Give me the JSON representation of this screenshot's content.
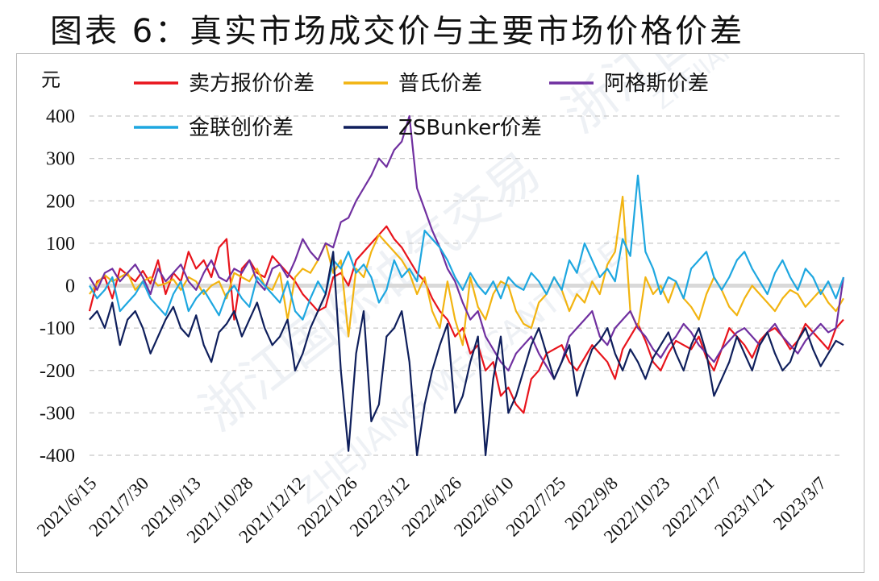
{
  "figure_title": "图表 6：真实市场成交价与主要市场价格价差",
  "watermark_text": [
    "浙江国际油气交易",
    "ZHEJIANG MERCANTILE EX",
    "浙江国际",
    "ZHEJIANG"
  ],
  "chart_data": {
    "type": "line",
    "ylabel": "元",
    "ylim": [
      -400,
      400
    ],
    "yticks": [
      "400",
      "300",
      "200",
      "100",
      "0",
      "-100",
      "-200",
      "-300",
      "-400"
    ],
    "xtick_labels": [
      "2021/6/15",
      "2021/7/30",
      "2021/9/13",
      "2021/10/28",
      "2021/12/12",
      "2022/1/26",
      "2022/3/12",
      "2022/4/26",
      "2022/6/10",
      "2022/7/25",
      "2022/9/8",
      "2022/10/23",
      "2022/12/7",
      "2023/1/21",
      "2023/3/7"
    ],
    "grid": "horizontal dashed",
    "legend_placement": "top, inside plot",
    "series": [
      {
        "name": "卖方报价价差",
        "color": "#e8141c",
        "values": [
          -60,
          10,
          20,
          -30,
          40,
          25,
          10,
          35,
          5,
          60,
          -20,
          30,
          10,
          80,
          40,
          60,
          20,
          90,
          110,
          -80,
          40,
          60,
          30,
          20,
          70,
          50,
          30,
          10,
          -20,
          -40,
          -60,
          -50,
          20,
          30,
          0,
          60,
          80,
          100,
          120,
          140,
          110,
          90,
          60,
          30,
          10,
          -30,
          -60,
          -80,
          -120,
          -100,
          -160,
          -140,
          -200,
          -180,
          -260,
          -240,
          -280,
          -300,
          -220,
          -200,
          -160,
          -150,
          -140,
          -180,
          -200,
          -170,
          -140,
          -160,
          -180,
          -220,
          -150,
          -120,
          -90,
          -130,
          -180,
          -200,
          -160,
          -130,
          -140,
          -150,
          -120,
          -170,
          -200,
          -150,
          -100,
          -120,
          -140,
          -170,
          -130,
          -110,
          -100,
          -120,
          -150,
          -130,
          -90,
          -110,
          -130,
          -150,
          -100,
          -80
        ]
      },
      {
        "name": "普氏价差",
        "color": "#f2b411",
        "values": [
          -20,
          5,
          25,
          10,
          20,
          30,
          -10,
          10,
          20,
          0,
          5,
          15,
          -10,
          20,
          10,
          -20,
          0,
          10,
          -30,
          30,
          20,
          10,
          40,
          0,
          -10,
          30,
          -80,
          20,
          40,
          30,
          60,
          100,
          30,
          60,
          -120,
          40,
          20,
          80,
          120,
          100,
          80,
          60,
          30,
          -20,
          20,
          -60,
          -100,
          10,
          -80,
          -140,
          20,
          -50,
          -80,
          -20,
          10,
          0,
          -60,
          -90,
          -100,
          -40,
          -20,
          20,
          -10,
          -60,
          -20,
          -40,
          10,
          -20,
          50,
          80,
          210,
          -60,
          -100,
          20,
          -20,
          0,
          -40,
          10,
          -30,
          -50,
          -80,
          -20,
          20,
          -10,
          -50,
          -70,
          -30,
          0,
          -20,
          -40,
          -60,
          -30,
          -10,
          -20,
          -50,
          -30,
          -10,
          -40,
          -60,
          -30
        ]
      },
      {
        "name": "阿格斯价差",
        "color": "#7030a0",
        "values": [
          20,
          -10,
          30,
          40,
          10,
          30,
          50,
          20,
          -20,
          40,
          10,
          30,
          50,
          10,
          -10,
          30,
          60,
          20,
          10,
          40,
          30,
          60,
          10,
          -10,
          40,
          50,
          20,
          60,
          110,
          80,
          60,
          100,
          90,
          150,
          160,
          200,
          230,
          260,
          300,
          280,
          320,
          340,
          400,
          230,
          180,
          130,
          90,
          40,
          10,
          -40,
          -80,
          -60,
          -120,
          -150,
          -180,
          -200,
          -160,
          -140,
          -120,
          -160,
          -190,
          -220,
          -180,
          -120,
          -100,
          -80,
          -60,
          -120,
          -140,
          -100,
          -80,
          -60,
          -100,
          -120,
          -150,
          -170,
          -140,
          -120,
          -90,
          -110,
          -140,
          -160,
          -180,
          -150,
          -130,
          -110,
          -100,
          -120,
          -140,
          -110,
          -90,
          -120,
          -140,
          -160,
          -130,
          -110,
          -90,
          -110,
          -100,
          20
        ]
      },
      {
        "name": "金联创价差",
        "color": "#1ea7e0",
        "values": [
          0,
          -30,
          -10,
          20,
          -60,
          -40,
          -20,
          10,
          -30,
          -50,
          -70,
          -20,
          10,
          -60,
          -30,
          -10,
          -40,
          -70,
          -20,
          0,
          -30,
          -50,
          20,
          0,
          -20,
          -40,
          10,
          -60,
          -80,
          -30,
          10,
          -20,
          60,
          40,
          80,
          30,
          50,
          20,
          -40,
          -10,
          60,
          20,
          40,
          10,
          130,
          110,
          90,
          60,
          20,
          -10,
          30,
          0,
          -20,
          10,
          -30,
          20,
          0,
          -10,
          30,
          10,
          -20,
          20,
          -10,
          60,
          30,
          100,
          60,
          20,
          40,
          10,
          110,
          70,
          260,
          80,
          40,
          -20,
          20,
          10,
          -30,
          40,
          60,
          80,
          20,
          -10,
          20,
          60,
          80,
          40,
          10,
          -20,
          30,
          60,
          20,
          -10,
          40,
          20,
          -20,
          10,
          -30,
          20
        ]
      },
      {
        "name": "ZSBunker价差",
        "color": "#0f1f5c",
        "values": [
          -80,
          -60,
          -100,
          -40,
          -140,
          -80,
          -60,
          -100,
          -160,
          -120,
          -80,
          -50,
          -100,
          -120,
          -70,
          -140,
          -180,
          -110,
          -90,
          -60,
          -120,
          -80,
          -40,
          -100,
          -140,
          -120,
          -80,
          -200,
          -160,
          -100,
          -60,
          -20,
          80,
          -200,
          -390,
          -160,
          -60,
          -320,
          -280,
          -120,
          -100,
          -60,
          -180,
          -400,
          -280,
          -200,
          -140,
          -90,
          -300,
          -260,
          -180,
          -120,
          -400,
          -220,
          -120,
          -300,
          -260,
          -200,
          -140,
          -100,
          -160,
          -220,
          -180,
          -140,
          -260,
          -200,
          -150,
          -130,
          -100,
          -160,
          -200,
          -150,
          -180,
          -220,
          -170,
          -140,
          -110,
          -160,
          -200,
          -140,
          -100,
          -160,
          -260,
          -220,
          -180,
          -120,
          -160,
          -200,
          -140,
          -110,
          -160,
          -200,
          -180,
          -130,
          -100,
          -150,
          -190,
          -160,
          -130,
          -140
        ]
      }
    ]
  }
}
